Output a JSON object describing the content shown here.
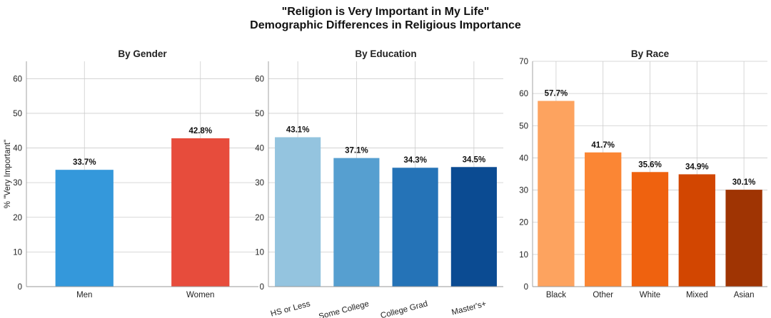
{
  "figure": {
    "title_line1": "\"Religion is Very Important in My Life\"",
    "title_line2": "Demographic Differences in Religious Importance"
  },
  "chart_data": [
    {
      "type": "bar",
      "title": "By Gender",
      "ylabel": "% \"Very Important\"",
      "ylim": [
        0,
        65
      ],
      "yticks": [
        0,
        10,
        20,
        30,
        40,
        50,
        60
      ],
      "grid": true,
      "categories": [
        "Men",
        "Women"
      ],
      "values": [
        33.7,
        42.8
      ],
      "labels": [
        "33.7%",
        "42.8%"
      ],
      "colors": [
        "#3498db",
        "#e74c3c"
      ],
      "xtick_rotation": 0
    },
    {
      "type": "bar",
      "title": "By Education",
      "ylim": [
        0,
        65
      ],
      "yticks": [
        0,
        10,
        20,
        30,
        40,
        50,
        60
      ],
      "grid": true,
      "categories": [
        "HS or Less",
        "Some College",
        "College Grad",
        "Master's+"
      ],
      "values": [
        43.1,
        37.1,
        34.3,
        34.5
      ],
      "labels": [
        "43.1%",
        "37.1%",
        "34.3%",
        "34.5%"
      ],
      "colors": [
        "#94c4df",
        "#569fd0",
        "#2573b7",
        "#0b4b92"
      ],
      "xtick_rotation": -15
    },
    {
      "type": "bar",
      "title": "By Race",
      "ylim": [
        0,
        70
      ],
      "yticks": [
        0,
        10,
        20,
        30,
        40,
        50,
        60,
        70
      ],
      "grid": true,
      "categories": [
        "Black",
        "Other",
        "White",
        "Mixed",
        "Asian"
      ],
      "values": [
        57.7,
        41.7,
        35.6,
        34.9,
        30.1
      ],
      "labels": [
        "57.7%",
        "41.7%",
        "35.6%",
        "34.9%",
        "30.1%"
      ],
      "colors": [
        "#fda35f",
        "#fb8634",
        "#ef620f",
        "#d24601",
        "#9f3403"
      ],
      "xtick_rotation": 0
    }
  ]
}
